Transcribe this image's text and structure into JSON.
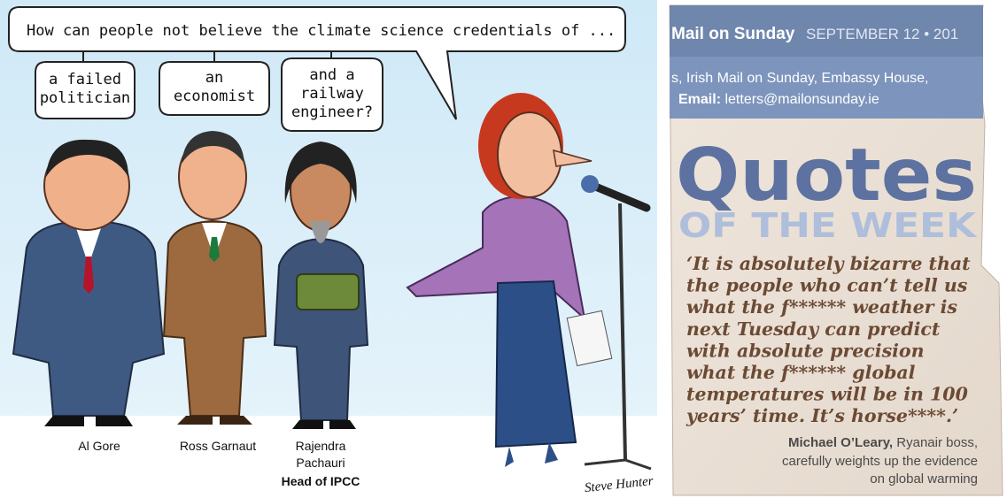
{
  "cartoon": {
    "caption": "How can people not believe the climate science credentials of ...",
    "bubbles": [
      [
        "a failed",
        "politician"
      ],
      [
        "an",
        "economist"
      ],
      [
        "and a",
        "railway",
        "engineer?"
      ]
    ],
    "people": [
      {
        "name": [
          "Al Gore"
        ]
      },
      {
        "name": [
          "Ross Garnaut"
        ]
      },
      {
        "name": [
          "Rajendra",
          "Pachauri"
        ],
        "role": "Head of IPCC"
      }
    ],
    "signature": "Steve Hunter"
  },
  "clipping": {
    "masthead": "Mail on Sunday",
    "date": "SEPTEMBER 12 • 201",
    "address": "s, Irish Mail on Sunday, Embassy House,",
    "email_label": "Email:",
    "email": "letters@mailonsunday.ie",
    "heading": "Quotes",
    "subheading": "OF THE WEEK",
    "quote_lines": [
      "‘It is absolutely bizarre that",
      "the people who can’t tell us",
      "what the f****** weather is",
      "next Tuesday can predict",
      "with absolute precision",
      "what the f****** global",
      "temperatures will be in 100",
      "years’ time. It’s horse****.’"
    ],
    "attribution": {
      "name": "Michael O’Leary,",
      "lines": [
        "Ryanair boss,",
        "carefully weights up the evidence",
        "on global warming"
      ]
    }
  }
}
